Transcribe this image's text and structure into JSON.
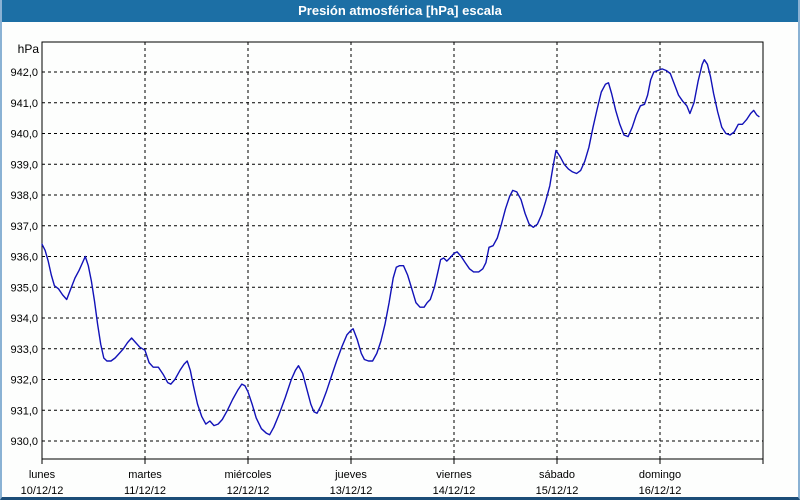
{
  "window": {
    "title": "Presión atmosférica [hPa] escala"
  },
  "colors": {
    "title_bar": "#1c6fa5",
    "title_text": "#ffffff",
    "line": "#1212b8",
    "grid": "#000000",
    "frame": "#000000",
    "border_light": "#8ab2d4",
    "border_dark": "#1c4d78",
    "background": "#fdfefd"
  },
  "chart_data": {
    "type": "line",
    "title": "Presión atmosférica [hPa] escala",
    "series_name": "Presión atmosférica",
    "grid": true,
    "legend": "none",
    "y_axis": {
      "unit": "hPa",
      "min": 930,
      "max": 942,
      "step": 1,
      "ylim": [
        929.4,
        943.0
      ],
      "ticks": [
        {
          "value": 942,
          "label": "942,0"
        },
        {
          "value": 941,
          "label": "941,0"
        },
        {
          "value": 940,
          "label": "940,0"
        },
        {
          "value": 939,
          "label": "939,0"
        },
        {
          "value": 938,
          "label": "938,0"
        },
        {
          "value": 937,
          "label": "937,0"
        },
        {
          "value": 936,
          "label": "936,0"
        },
        {
          "value": 935,
          "label": "935,0"
        },
        {
          "value": 934,
          "label": "934,0"
        },
        {
          "value": 933,
          "label": "933,0"
        },
        {
          "value": 932,
          "label": "932,0"
        },
        {
          "value": 931,
          "label": "931,0"
        },
        {
          "value": 930,
          "label": "930,0"
        }
      ]
    },
    "x_axis": {
      "unit": "day",
      "range_days": 7,
      "days": [
        {
          "name": "lunes",
          "date": "10/12/12"
        },
        {
          "name": "martes",
          "date": "11/12/12"
        },
        {
          "name": "miércoles",
          "date": "12/12/12"
        },
        {
          "name": "jueves",
          "date": "13/12/12"
        },
        {
          "name": "viernes",
          "date": "14/12/12"
        },
        {
          "name": "sábado",
          "date": "15/12/12"
        },
        {
          "name": "domingo",
          "date": "16/12/12"
        }
      ]
    },
    "series": [
      [
        0.0,
        936.4
      ],
      [
        0.03,
        936.2
      ],
      [
        0.06,
        935.85
      ],
      [
        0.09,
        935.4
      ],
      [
        0.12,
        935.05
      ],
      [
        0.16,
        934.95
      ],
      [
        0.2,
        934.75
      ],
      [
        0.24,
        934.6
      ],
      [
        0.28,
        934.95
      ],
      [
        0.32,
        935.3
      ],
      [
        0.36,
        935.55
      ],
      [
        0.4,
        935.85
      ],
      [
        0.42,
        936.0
      ],
      [
        0.45,
        935.7
      ],
      [
        0.48,
        935.2
      ],
      [
        0.51,
        934.55
      ],
      [
        0.54,
        933.8
      ],
      [
        0.57,
        933.15
      ],
      [
        0.6,
        932.7
      ],
      [
        0.63,
        932.6
      ],
      [
        0.67,
        932.6
      ],
      [
        0.71,
        932.7
      ],
      [
        0.75,
        932.85
      ],
      [
        0.79,
        933.0
      ],
      [
        0.83,
        933.2
      ],
      [
        0.87,
        933.35
      ],
      [
        0.91,
        933.2
      ],
      [
        0.95,
        933.05
      ],
      [
        1.0,
        932.95
      ],
      [
        1.04,
        932.55
      ],
      [
        1.08,
        932.4
      ],
      [
        1.13,
        932.4
      ],
      [
        1.18,
        932.15
      ],
      [
        1.22,
        931.9
      ],
      [
        1.25,
        931.85
      ],
      [
        1.29,
        932.0
      ],
      [
        1.34,
        932.3
      ],
      [
        1.38,
        932.5
      ],
      [
        1.41,
        932.6
      ],
      [
        1.44,
        932.3
      ],
      [
        1.47,
        931.8
      ],
      [
        1.51,
        931.2
      ],
      [
        1.55,
        930.8
      ],
      [
        1.59,
        930.55
      ],
      [
        1.63,
        930.65
      ],
      [
        1.67,
        930.5
      ],
      [
        1.71,
        930.55
      ],
      [
        1.75,
        930.7
      ],
      [
        1.8,
        931.0
      ],
      [
        1.85,
        931.35
      ],
      [
        1.9,
        931.65
      ],
      [
        1.94,
        931.85
      ],
      [
        1.97,
        931.8
      ],
      [
        2.0,
        931.6
      ],
      [
        2.04,
        931.2
      ],
      [
        2.08,
        930.75
      ],
      [
        2.13,
        930.4
      ],
      [
        2.18,
        930.25
      ],
      [
        2.21,
        930.2
      ],
      [
        2.25,
        930.45
      ],
      [
        2.3,
        930.85
      ],
      [
        2.36,
        931.4
      ],
      [
        2.42,
        932.0
      ],
      [
        2.46,
        932.3
      ],
      [
        2.49,
        932.45
      ],
      [
        2.53,
        932.2
      ],
      [
        2.57,
        931.7
      ],
      [
        2.61,
        931.2
      ],
      [
        2.64,
        930.95
      ],
      [
        2.67,
        930.9
      ],
      [
        2.71,
        931.15
      ],
      [
        2.76,
        931.6
      ],
      [
        2.81,
        932.1
      ],
      [
        2.86,
        932.6
      ],
      [
        2.91,
        933.05
      ],
      [
        2.96,
        933.45
      ],
      [
        3.0,
        933.6
      ],
      [
        3.02,
        933.65
      ],
      [
        3.06,
        933.3
      ],
      [
        3.1,
        932.85
      ],
      [
        3.13,
        932.65
      ],
      [
        3.17,
        932.6
      ],
      [
        3.21,
        932.6
      ],
      [
        3.25,
        932.85
      ],
      [
        3.29,
        933.25
      ],
      [
        3.33,
        933.8
      ],
      [
        3.37,
        934.5
      ],
      [
        3.41,
        935.3
      ],
      [
        3.44,
        935.65
      ],
      [
        3.47,
        935.7
      ],
      [
        3.51,
        935.7
      ],
      [
        3.55,
        935.4
      ],
      [
        3.59,
        934.95
      ],
      [
        3.63,
        934.5
      ],
      [
        3.67,
        934.35
      ],
      [
        3.71,
        934.35
      ],
      [
        3.74,
        934.5
      ],
      [
        3.77,
        934.6
      ],
      [
        3.81,
        935.0
      ],
      [
        3.85,
        935.6
      ],
      [
        3.87,
        935.9
      ],
      [
        3.9,
        935.95
      ],
      [
        3.93,
        935.85
      ],
      [
        3.96,
        935.95
      ],
      [
        4.0,
        936.1
      ],
      [
        4.03,
        936.15
      ],
      [
        4.07,
        936.0
      ],
      [
        4.11,
        935.8
      ],
      [
        4.15,
        935.6
      ],
      [
        4.19,
        935.5
      ],
      [
        4.24,
        935.5
      ],
      [
        4.28,
        935.6
      ],
      [
        4.31,
        935.8
      ],
      [
        4.34,
        936.3
      ],
      [
        4.38,
        936.35
      ],
      [
        4.42,
        936.6
      ],
      [
        4.46,
        937.05
      ],
      [
        4.5,
        937.55
      ],
      [
        4.54,
        937.95
      ],
      [
        4.57,
        938.15
      ],
      [
        4.61,
        938.1
      ],
      [
        4.65,
        937.85
      ],
      [
        4.69,
        937.4
      ],
      [
        4.73,
        937.05
      ],
      [
        4.77,
        936.95
      ],
      [
        4.81,
        937.05
      ],
      [
        4.85,
        937.35
      ],
      [
        4.89,
        937.8
      ],
      [
        4.93,
        938.3
      ],
      [
        4.96,
        938.9
      ],
      [
        4.99,
        939.45
      ],
      [
        5.03,
        939.25
      ],
      [
        5.07,
        939.0
      ],
      [
        5.11,
        938.85
      ],
      [
        5.15,
        938.75
      ],
      [
        5.19,
        938.7
      ],
      [
        5.23,
        938.8
      ],
      [
        5.27,
        939.1
      ],
      [
        5.31,
        939.55
      ],
      [
        5.35,
        940.2
      ],
      [
        5.39,
        940.8
      ],
      [
        5.43,
        941.35
      ],
      [
        5.47,
        941.6
      ],
      [
        5.5,
        941.65
      ],
      [
        5.53,
        941.3
      ],
      [
        5.57,
        940.75
      ],
      [
        5.61,
        940.3
      ],
      [
        5.65,
        939.95
      ],
      [
        5.69,
        939.9
      ],
      [
        5.73,
        940.2
      ],
      [
        5.77,
        940.6
      ],
      [
        5.81,
        940.9
      ],
      [
        5.85,
        940.95
      ],
      [
        5.88,
        941.25
      ],
      [
        5.91,
        941.75
      ],
      [
        5.94,
        942.0
      ],
      [
        5.98,
        942.05
      ],
      [
        6.02,
        942.1
      ],
      [
        6.06,
        942.05
      ],
      [
        6.1,
        941.95
      ],
      [
        6.14,
        941.6
      ],
      [
        6.18,
        941.25
      ],
      [
        6.22,
        941.05
      ],
      [
        6.26,
        940.9
      ],
      [
        6.29,
        940.65
      ],
      [
        6.33,
        941.0
      ],
      [
        6.37,
        941.7
      ],
      [
        6.41,
        942.25
      ],
      [
        6.43,
        942.4
      ],
      [
        6.46,
        942.25
      ],
      [
        6.49,
        941.85
      ],
      [
        6.52,
        941.3
      ],
      [
        6.56,
        940.7
      ],
      [
        6.6,
        940.2
      ],
      [
        6.64,
        940.0
      ],
      [
        6.68,
        939.95
      ],
      [
        6.72,
        940.05
      ],
      [
        6.76,
        940.3
      ],
      [
        6.8,
        940.3
      ],
      [
        6.84,
        940.45
      ],
      [
        6.88,
        940.65
      ],
      [
        6.91,
        940.75
      ],
      [
        6.94,
        940.6
      ],
      [
        6.96,
        940.55
      ]
    ]
  }
}
